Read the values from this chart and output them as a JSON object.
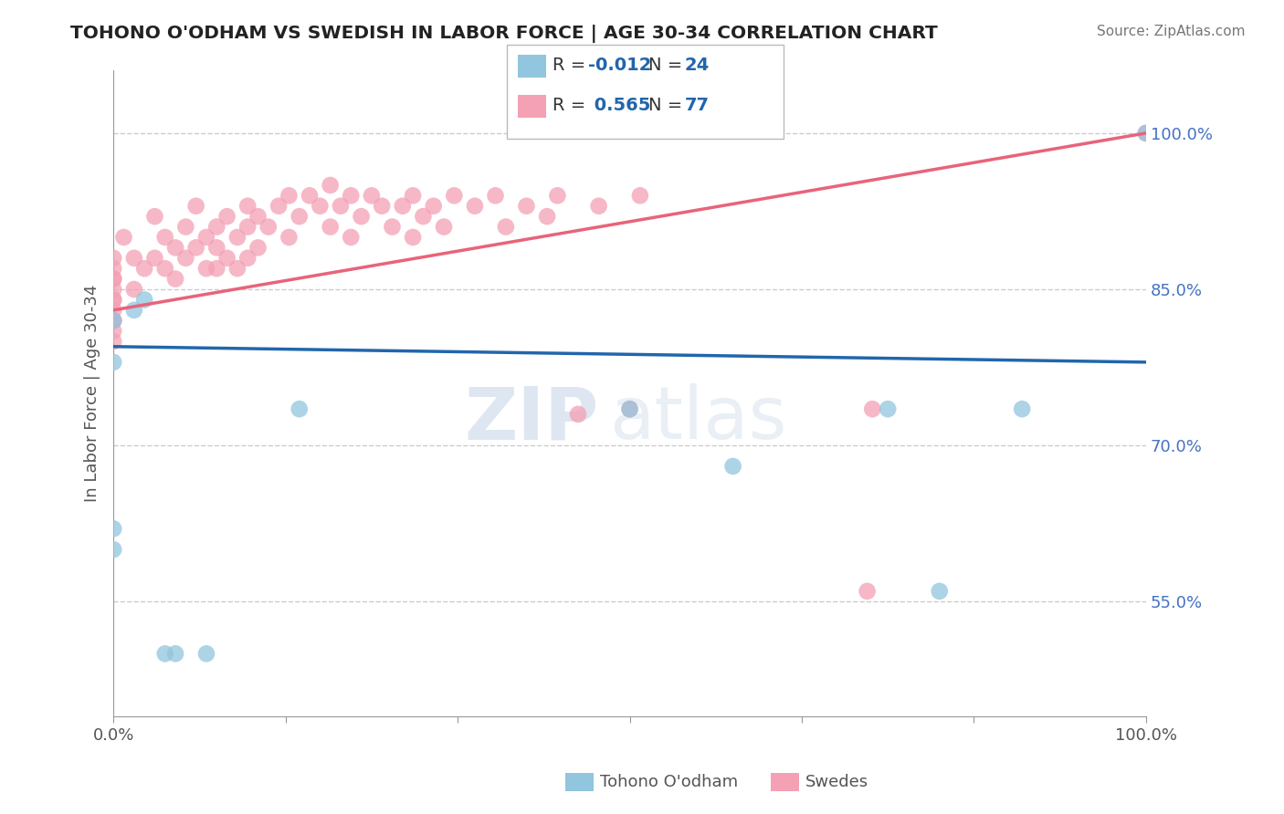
{
  "title": "TOHONO O'ODHAM VS SWEDISH IN LABOR FORCE | AGE 30-34 CORRELATION CHART",
  "source_text": "Source: ZipAtlas.com",
  "ylabel": "In Labor Force | Age 30-34",
  "xlim": [
    0.0,
    1.0
  ],
  "ylim": [
    0.44,
    1.06
  ],
  "right_ytick_labels": [
    "55.0%",
    "70.0%",
    "85.0%",
    "100.0%"
  ],
  "right_ytick_values": [
    0.55,
    0.7,
    0.85,
    1.0
  ],
  "grid_color": "#cccccc",
  "blue_color": "#92c5de",
  "pink_color": "#f4a0b5",
  "blue_line_color": "#2166ac",
  "pink_line_color": "#e8647a",
  "watermark_zip": "ZIP",
  "watermark_atlas": "atlas",
  "blue_r": -0.012,
  "blue_n": 24,
  "pink_r": 0.565,
  "pink_n": 77,
  "blue_x": [
    0.0,
    0.0,
    0.0,
    0.0,
    0.02,
    0.03,
    0.05,
    0.06,
    0.09,
    0.18,
    0.5,
    0.6,
    0.75,
    0.8,
    0.88,
    1.0
  ],
  "blue_y": [
    0.78,
    0.82,
    0.62,
    0.6,
    0.83,
    0.84,
    0.5,
    0.5,
    0.5,
    0.735,
    0.735,
    0.68,
    0.735,
    0.56,
    0.735,
    1.0
  ],
  "pink_x": [
    0.0,
    0.0,
    0.0,
    0.0,
    0.0,
    0.0,
    0.0,
    0.0,
    0.0,
    0.0,
    0.0,
    0.0,
    0.01,
    0.02,
    0.02,
    0.03,
    0.04,
    0.04,
    0.05,
    0.05,
    0.06,
    0.06,
    0.07,
    0.07,
    0.08,
    0.08,
    0.09,
    0.09,
    0.1,
    0.1,
    0.1,
    0.11,
    0.11,
    0.12,
    0.12,
    0.13,
    0.13,
    0.13,
    0.14,
    0.14,
    0.15,
    0.16,
    0.17,
    0.17,
    0.18,
    0.19,
    0.2,
    0.21,
    0.21,
    0.22,
    0.23,
    0.23,
    0.24,
    0.25,
    0.26,
    0.27,
    0.28,
    0.29,
    0.29,
    0.3,
    0.31,
    0.32,
    0.33,
    0.35,
    0.37,
    0.38,
    0.4,
    0.42,
    0.43,
    0.45,
    0.47,
    0.5,
    0.51,
    0.73,
    0.735,
    1.0
  ],
  "pink_y": [
    0.88,
    0.87,
    0.86,
    0.86,
    0.85,
    0.84,
    0.84,
    0.83,
    0.82,
    0.82,
    0.81,
    0.8,
    0.9,
    0.88,
    0.85,
    0.87,
    0.92,
    0.88,
    0.9,
    0.87,
    0.89,
    0.86,
    0.91,
    0.88,
    0.93,
    0.89,
    0.9,
    0.87,
    0.91,
    0.89,
    0.87,
    0.92,
    0.88,
    0.9,
    0.87,
    0.93,
    0.91,
    0.88,
    0.92,
    0.89,
    0.91,
    0.93,
    0.94,
    0.9,
    0.92,
    0.94,
    0.93,
    0.95,
    0.91,
    0.93,
    0.94,
    0.9,
    0.92,
    0.94,
    0.93,
    0.91,
    0.93,
    0.94,
    0.9,
    0.92,
    0.93,
    0.91,
    0.94,
    0.93,
    0.94,
    0.91,
    0.93,
    0.92,
    0.94,
    0.73,
    0.93,
    0.735,
    0.94,
    0.56,
    0.735,
    1.0
  ]
}
